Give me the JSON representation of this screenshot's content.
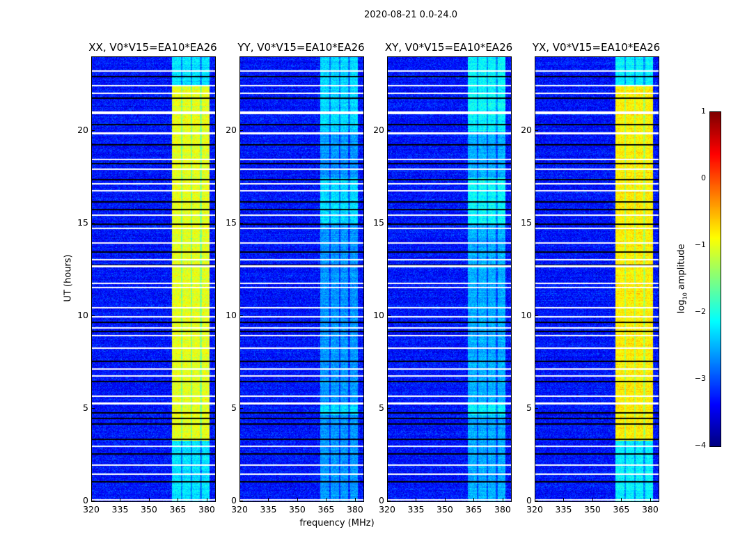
{
  "chart_data": {
    "type": "heatmap",
    "title": "2020-08-21 0.0-24.0",
    "xlabel": "frequency (MHz)",
    "ylabel": "UT (hours)",
    "xlim": [
      320,
      384
    ],
    "ylim": [
      0,
      24
    ],
    "xticks": [
      "320",
      "335",
      "350",
      "365",
      "380"
    ],
    "yticks": [
      "0",
      "5",
      "10",
      "15",
      "20"
    ],
    "colorbar": {
      "label": "log10 amplitude",
      "label_main": "log",
      "label_sub": "10",
      "label_rest": " amplitude",
      "range": [
        -4,
        1
      ],
      "ticks": [
        "1",
        "0",
        "−1",
        "−2",
        "−3",
        "−4"
      ],
      "colormap": "jet"
    },
    "background_level": -3.3,
    "band_mhz": [
      361.5,
      381
    ],
    "panels": [
      {
        "title": "XX, V0*V15=EA10*EA26",
        "band_level": -1.0
      },
      {
        "title": "YY, V0*V15=EA10*EA26",
        "band_level": -2.2
      },
      {
        "title": "XY, V0*V15=EA10*EA26",
        "band_level": -2.0
      },
      {
        "title": "YX, V0*V15=EA10*EA26",
        "band_level": -0.8
      }
    ],
    "flagged_hours_white": [
      0.1,
      1.5,
      2.0,
      3.0,
      5.3,
      5.35,
      5.7,
      6.8,
      7.2,
      8.3,
      9.0,
      9.4,
      10.0,
      10.5,
      11.6,
      11.8,
      12.7,
      12.75,
      13.1,
      14.0,
      14.8,
      15.5,
      16.8,
      17.2,
      18.0,
      18.5,
      19.9,
      19.95,
      21.0,
      21.05,
      22.1,
      22.5,
      23.3
    ],
    "flagged_hours_black": [
      1.1,
      2.6,
      3.4,
      4.2,
      4.5,
      4.8,
      6.5,
      7.6,
      9.2,
      9.7,
      12.8,
      13.5,
      15.0,
      15.8,
      16.2,
      17.4,
      18.3,
      19.3,
      20.4,
      21.8,
      23.0
    ]
  }
}
